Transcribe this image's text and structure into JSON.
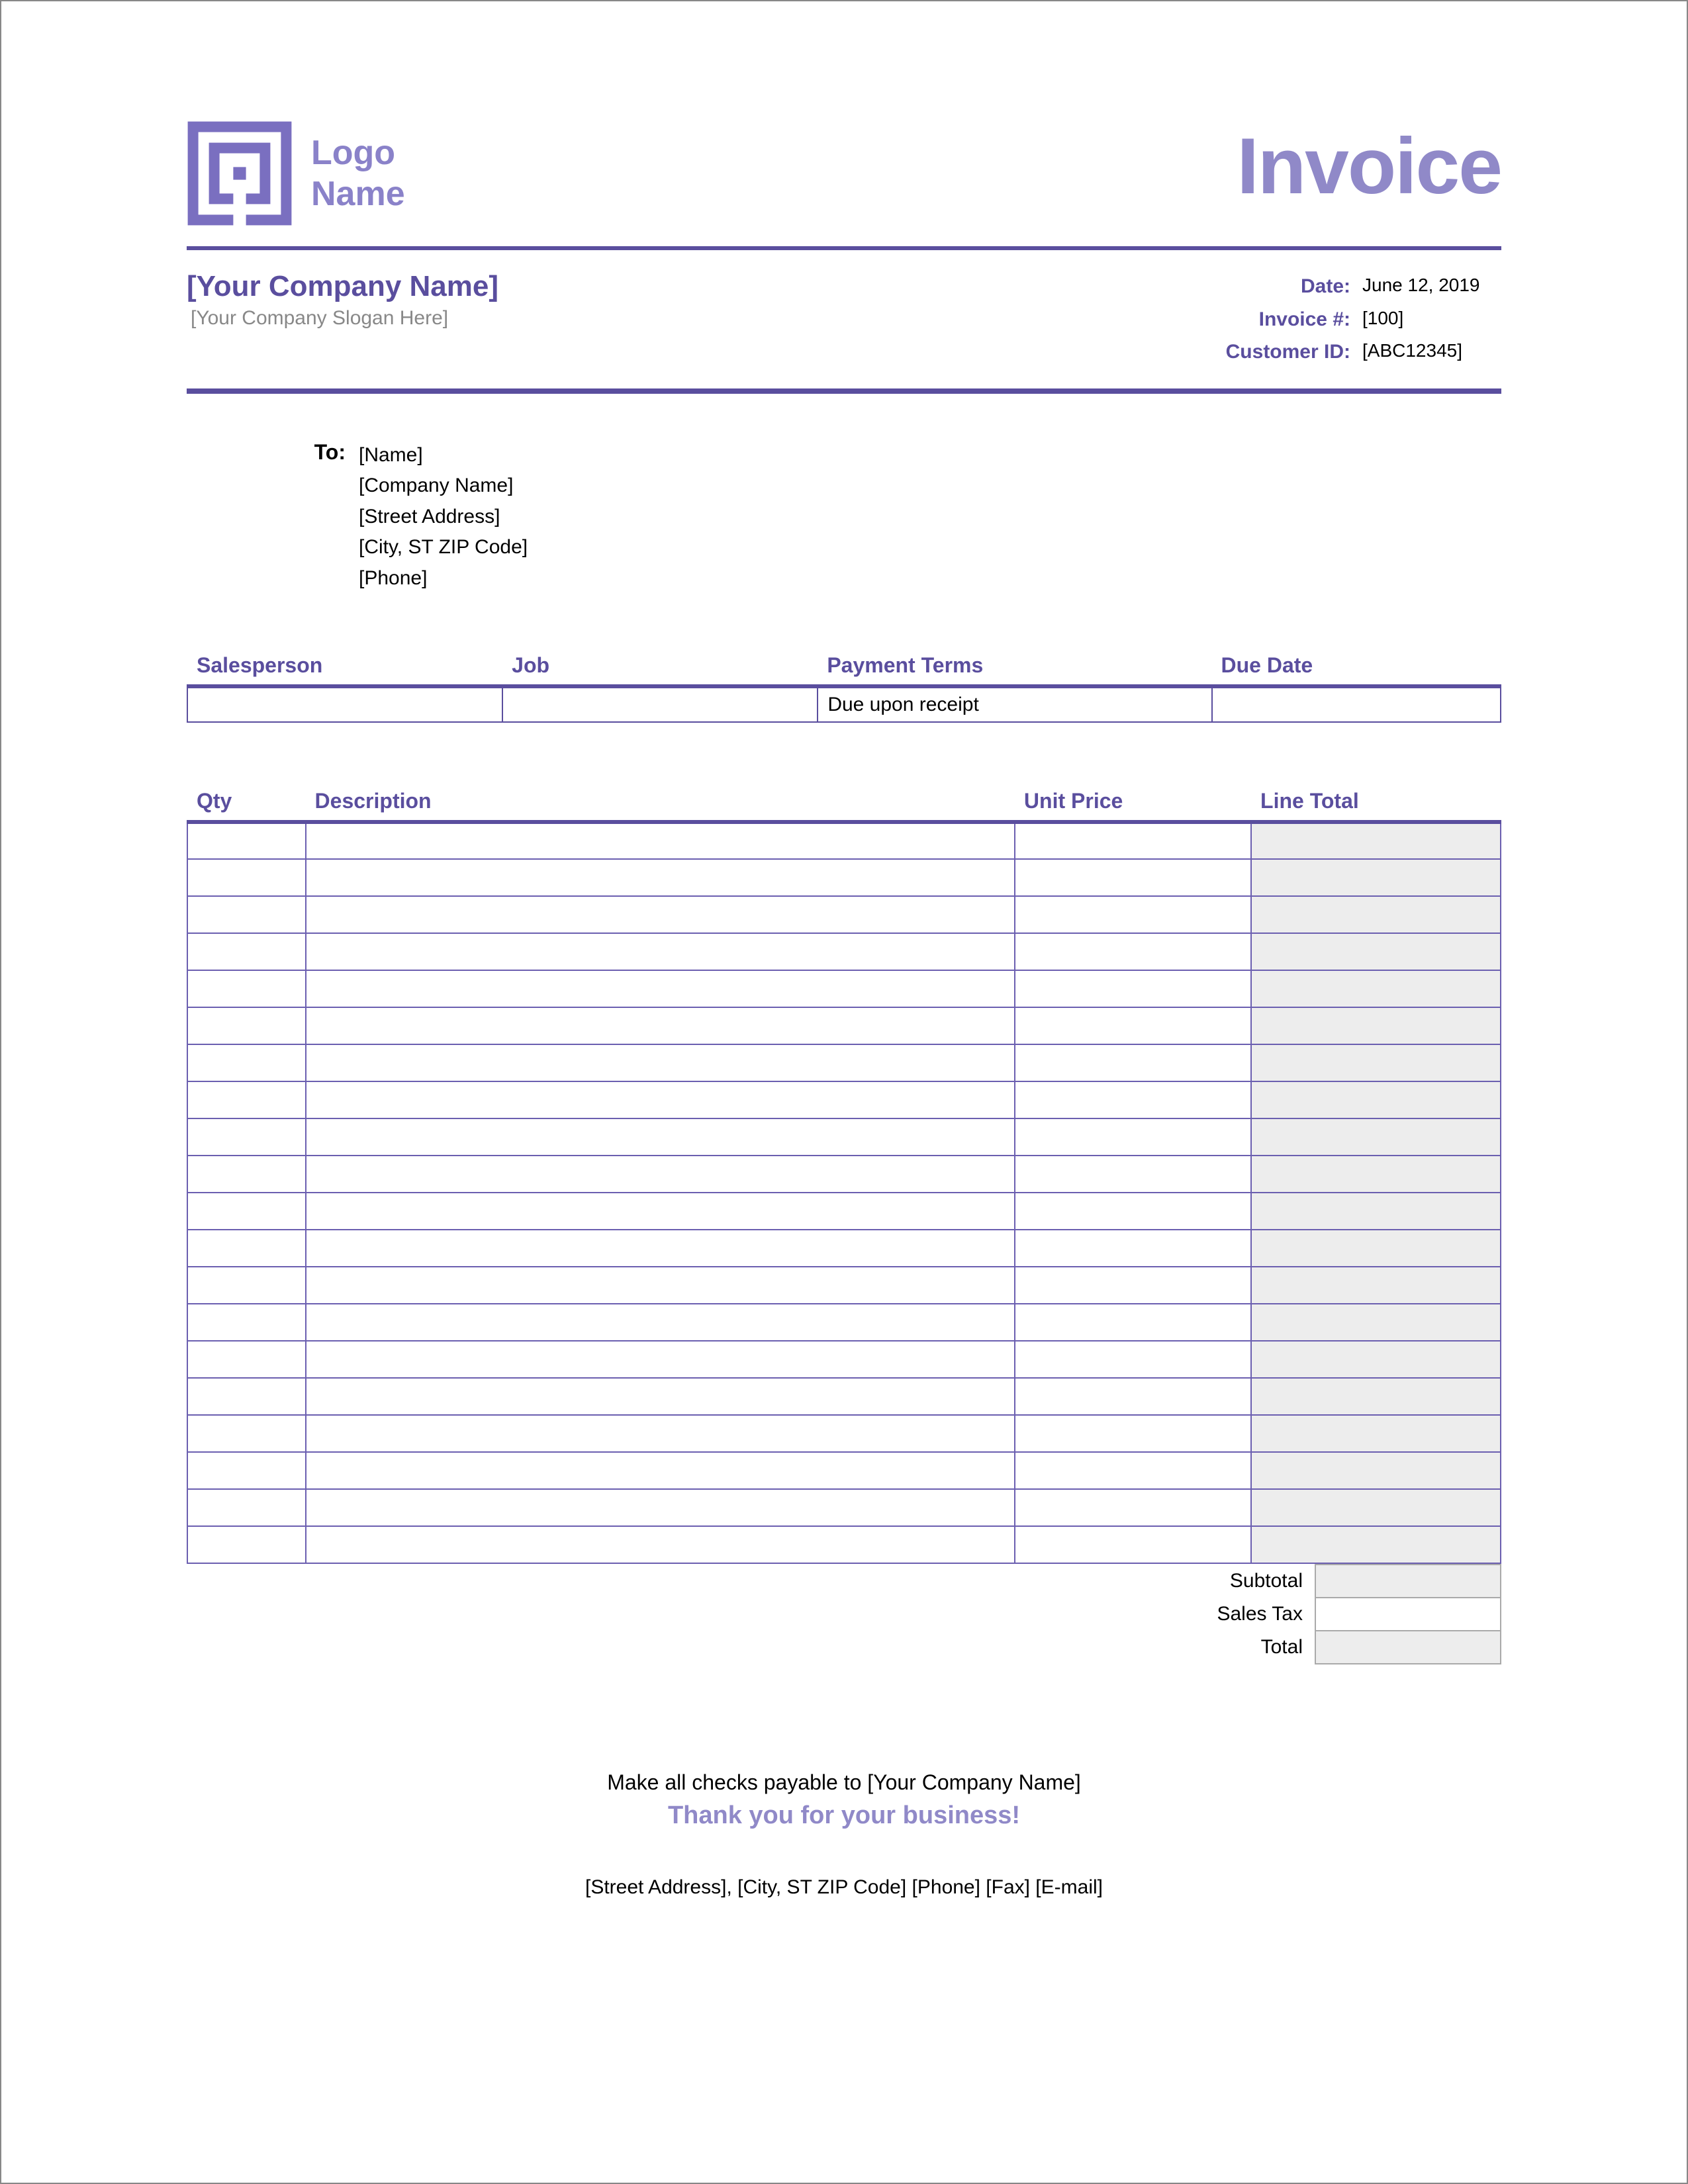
{
  "colors": {
    "accent": "#5a4e9e",
    "accent_light": "#9089c8",
    "muted": "#888888",
    "shade": "#ededed",
    "border": "#6b5fb0"
  },
  "header": {
    "logo_line1": "Logo",
    "logo_line2": "Name",
    "title": "Invoice"
  },
  "company": {
    "name": "[Your Company Name]",
    "slogan": "[Your Company Slogan Here]"
  },
  "meta": {
    "date_label": "Date:",
    "date_value": "June 12, 2019",
    "invoice_label": "Invoice #:",
    "invoice_value": "[100]",
    "customer_label": "Customer ID:",
    "customer_value": "[ABC12345]"
  },
  "to": {
    "label": "To:",
    "lines": [
      "[Name]",
      "[Company Name]",
      "[Street Address]",
      "[City, ST  ZIP Code]",
      "[Phone]"
    ]
  },
  "summary": {
    "headers": [
      "Salesperson",
      "Job",
      "Payment Terms",
      "Due Date"
    ],
    "row": [
      "",
      "",
      "Due upon receipt",
      ""
    ],
    "col_widths": [
      "24%",
      "24%",
      "30%",
      "22%"
    ]
  },
  "items": {
    "headers": [
      "Qty",
      "Description",
      "Unit Price",
      "Line Total"
    ],
    "row_count": 20
  },
  "totals": {
    "rows": [
      {
        "label": "Subtotal",
        "value": "",
        "shade": true
      },
      {
        "label": "Sales Tax",
        "value": "",
        "shade": false
      },
      {
        "label": "Total",
        "value": "",
        "shade": true
      }
    ]
  },
  "footer": {
    "payable": "Make all checks payable to [Your Company Name]",
    "thanks": "Thank you for your business!",
    "contact": "[Street Address], [City, ST  ZIP Code]  [Phone]  [Fax]  [E-mail]"
  }
}
